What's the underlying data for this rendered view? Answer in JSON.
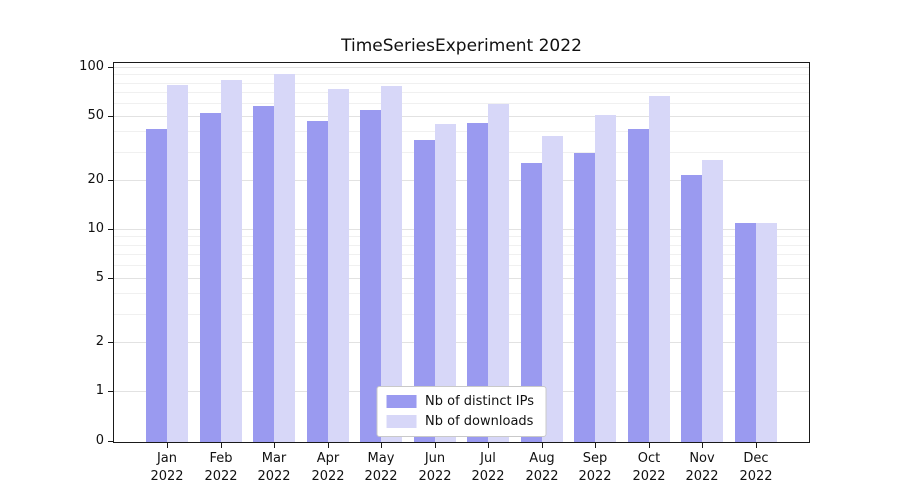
{
  "chart_data": {
    "type": "bar",
    "title": "TimeSeriesExperiment 2022",
    "year": "2022",
    "categories": [
      "Jan",
      "Feb",
      "Mar",
      "Apr",
      "May",
      "Jun",
      "Jul",
      "Aug",
      "Sep",
      "Oct",
      "Nov",
      "Dec"
    ],
    "series": [
      {
        "name": "Nb of distinct IPs",
        "color": "#9a9af0",
        "values": [
          42,
          53,
          58,
          47,
          55,
          36,
          46,
          26,
          30,
          42,
          22,
          11
        ]
      },
      {
        "name": "Nb of downloads",
        "color": "#d7d7f8",
        "values": [
          78,
          84,
          92,
          74,
          77,
          45,
          60,
          38,
          51,
          67,
          27,
          11
        ]
      }
    ],
    "yscale": "symlog",
    "yticks": [
      0,
      1,
      2,
      5,
      10,
      20,
      50,
      100
    ],
    "minor_gridlines": [
      3,
      4,
      6,
      7,
      8,
      9,
      30,
      40,
      60,
      70,
      80,
      90
    ],
    "ylim": [
      0,
      110
    ],
    "xlabel": "",
    "ylabel": "",
    "grid": "horizontal",
    "legend_position": "lower center",
    "colors": {
      "axis": "#1a1a1a",
      "grid_major": "#e2e2e2",
      "grid_minor": "#f0f0f0"
    }
  }
}
